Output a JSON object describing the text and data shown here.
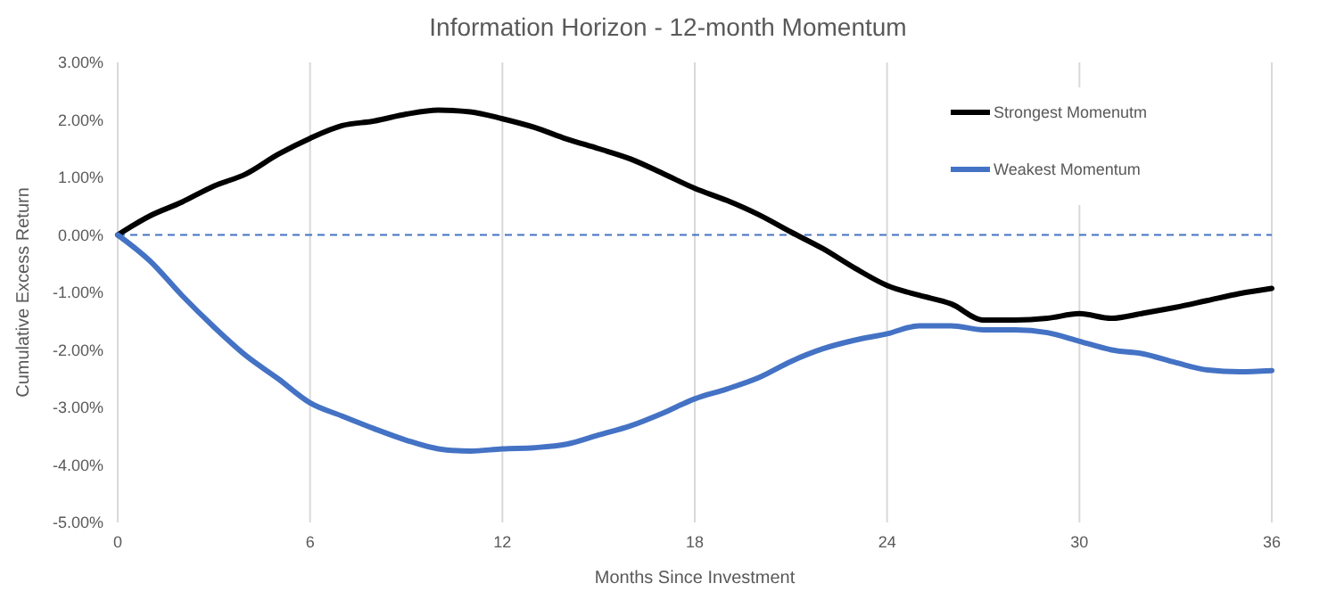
{
  "chart_data": {
    "type": "line",
    "title": "Information Horizon - 12-month Momentum",
    "xlabel": "Months Since Investment",
    "ylabel": "Cumulative Excess Return",
    "x": [
      0,
      1,
      2,
      3,
      4,
      5,
      6,
      7,
      8,
      9,
      10,
      11,
      12,
      13,
      14,
      15,
      16,
      17,
      18,
      19,
      20,
      21,
      22,
      23,
      24,
      25,
      26,
      27,
      28,
      29,
      30,
      31,
      32,
      33,
      34,
      35,
      36
    ],
    "series": [
      {
        "name": "Strongest Momenutm",
        "color": "#000000",
        "values": [
          0,
          0.33,
          0.57,
          0.85,
          1.06,
          1.4,
          1.68,
          1.9,
          1.98,
          2.1,
          2.17,
          2.14,
          2.02,
          1.87,
          1.67,
          1.5,
          1.32,
          1.07,
          0.81,
          0.6,
          0.35,
          0.05,
          -0.24,
          -0.58,
          -0.88,
          -1.05,
          -1.2,
          -1.48,
          -1.48,
          -1.45,
          -1.37,
          -1.45,
          -1.36,
          -1.26,
          -1.14,
          -1.02,
          -0.93
        ]
      },
      {
        "name": "Weakest Momentum",
        "color": "#4472c4",
        "values": [
          0,
          -0.45,
          -1.05,
          -1.6,
          -2.1,
          -2.5,
          -2.92,
          -3.15,
          -3.37,
          -3.57,
          -3.72,
          -3.76,
          -3.72,
          -3.7,
          -3.64,
          -3.48,
          -3.32,
          -3.1,
          -2.85,
          -2.68,
          -2.48,
          -2.2,
          -1.98,
          -1.83,
          -1.72,
          -1.58,
          -1.58,
          -1.65,
          -1.65,
          -1.7,
          -1.85,
          -2.0,
          -2.07,
          -2.22,
          -2.35,
          -2.38,
          -2.36
        ]
      }
    ],
    "xlim": [
      0,
      36
    ],
    "xticks": [
      0,
      6,
      12,
      18,
      24,
      30,
      36
    ],
    "ylim": [
      -5,
      3
    ],
    "yticks": [
      {
        "value": -5,
        "label": "-5.00%"
      },
      {
        "value": -4,
        "label": "-4.00%"
      },
      {
        "value": -3,
        "label": "-3.00%"
      },
      {
        "value": -2,
        "label": "-2.00%"
      },
      {
        "value": -1,
        "label": "-1.00%"
      },
      {
        "value": 0,
        "label": "0.00%"
      },
      {
        "value": 1,
        "label": "1.00%"
      },
      {
        "value": 2,
        "label": "2.00%"
      },
      {
        "value": 3,
        "label": "3.00%"
      }
    ],
    "ref_lines": [
      {
        "axis": "y",
        "value": 0,
        "color": "#4472c4",
        "line_style": "dashed"
      }
    ],
    "grid": "x",
    "legend": "top right",
    "marker": "none",
    "line_style": "solid"
  }
}
